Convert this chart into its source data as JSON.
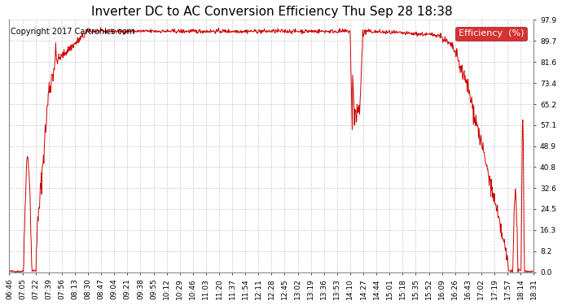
{
  "title": "Inverter DC to AC Conversion Efficiency Thu Sep 28 18:38",
  "copyright": "Copyright 2017 Cartronics.com",
  "legend_label": "Efficiency  (%)",
  "legend_bg": "#cc0000",
  "legend_text_color": "#ffffff",
  "line_color": "#cc0000",
  "background_color": "#ffffff",
  "grid_color": "#bbbbbb",
  "ylim": [
    0.0,
    97.9
  ],
  "yticks": [
    0.0,
    8.2,
    16.3,
    24.5,
    32.6,
    40.8,
    48.9,
    57.1,
    65.2,
    73.4,
    81.6,
    89.7,
    97.9
  ],
  "xtick_labels": [
    "06:46",
    "07:05",
    "07:22",
    "07:39",
    "07:56",
    "08:13",
    "08:30",
    "08:47",
    "09:04",
    "09:21",
    "09:38",
    "09:55",
    "10:12",
    "10:29",
    "10:46",
    "11:03",
    "11:20",
    "11:37",
    "11:54",
    "12:11",
    "12:28",
    "12:45",
    "13:02",
    "13:19",
    "13:36",
    "13:53",
    "14:10",
    "14:27",
    "14:44",
    "15:01",
    "15:18",
    "15:35",
    "15:52",
    "16:09",
    "16:26",
    "16:43",
    "17:02",
    "17:19",
    "17:57",
    "18:14",
    "18:31"
  ],
  "title_fontsize": 11,
  "copyright_fontsize": 7,
  "tick_fontsize": 6.5,
  "legend_fontsize": 8
}
